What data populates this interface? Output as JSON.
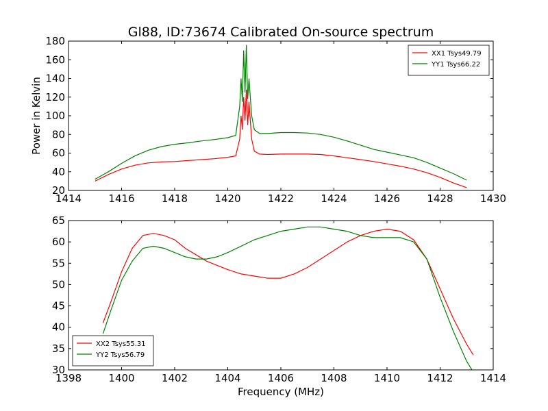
{
  "chart_data": [
    {
      "type": "line",
      "title": "Gl88, ID:73674 Calibrated On-source spectrum",
      "xlabel": "",
      "ylabel": "Power in Kelvin",
      "xlim": [
        1414,
        1430
      ],
      "ylim": [
        20,
        180
      ],
      "xticks": [
        1414,
        1416,
        1418,
        1420,
        1422,
        1424,
        1426,
        1428,
        1430
      ],
      "yticks": [
        20,
        40,
        60,
        80,
        100,
        120,
        140,
        160,
        180
      ],
      "grid": false,
      "legend": "top-right",
      "series": [
        {
          "name": "XX1 Tsys49.79",
          "color": "#ff0000",
          "x": [
            1415,
            1415.5,
            1416,
            1416.5,
            1417,
            1417.5,
            1418,
            1418.5,
            1419,
            1419.5,
            1420,
            1420.3,
            1420.45,
            1420.5,
            1420.55,
            1420.6,
            1420.65,
            1420.7,
            1420.75,
            1420.8,
            1420.85,
            1420.9,
            1421,
            1421.2,
            1421.5,
            1422,
            1422.5,
            1423,
            1423.5,
            1424,
            1424.5,
            1425,
            1425.5,
            1426,
            1426.5,
            1427,
            1427.5,
            1428,
            1428.5,
            1429
          ],
          "values": [
            30,
            37,
            43,
            47,
            49.5,
            50.5,
            51,
            52,
            53,
            54,
            55.5,
            57,
            75,
            100,
            85,
            120,
            95,
            128,
            90,
            115,
            95,
            75,
            62,
            59,
            58.5,
            59,
            59,
            59,
            58.5,
            57,
            55,
            53,
            51,
            48.5,
            46,
            43,
            39,
            34,
            28,
            23
          ]
        },
        {
          "name": "YY1 Tsys66.22",
          "color": "#008000",
          "x": [
            1415,
            1415.5,
            1416,
            1416.5,
            1417,
            1417.5,
            1418,
            1418.5,
            1419,
            1419.5,
            1420,
            1420.3,
            1420.45,
            1420.5,
            1420.55,
            1420.6,
            1420.65,
            1420.7,
            1420.75,
            1420.8,
            1420.85,
            1420.9,
            1421,
            1421.2,
            1421.5,
            1422,
            1422.5,
            1423,
            1423.5,
            1424,
            1424.5,
            1425,
            1425.5,
            1426,
            1426.5,
            1427,
            1427.5,
            1428,
            1428.5,
            1429
          ],
          "values": [
            32,
            40,
            49,
            57,
            63,
            67,
            69.5,
            71,
            73,
            74.5,
            76.5,
            79,
            110,
            140,
            115,
            170,
            125,
            176,
            118,
            140,
            120,
            100,
            85,
            81,
            81,
            82,
            82,
            81.5,
            80,
            77,
            73,
            68.5,
            64,
            61,
            58,
            55,
            50,
            44,
            38,
            31
          ]
        }
      ]
    },
    {
      "type": "line",
      "title": "",
      "xlabel": "Frequency (MHz)",
      "ylabel": "",
      "xlim": [
        1398,
        1414
      ],
      "ylim": [
        30,
        65
      ],
      "xticks": [
        1398,
        1400,
        1402,
        1404,
        1406,
        1408,
        1410,
        1412,
        1414
      ],
      "yticks": [
        30,
        35,
        40,
        45,
        50,
        55,
        60,
        65
      ],
      "grid": false,
      "legend": "bottom-left",
      "series": [
        {
          "name": "XX2 Tsys55.31",
          "color": "#ff0000",
          "x": [
            1399.3,
            1399.6,
            1400,
            1400.4,
            1400.8,
            1401.2,
            1401.6,
            1402,
            1402.4,
            1402.8,
            1403.2,
            1403.6,
            1404,
            1404.5,
            1405,
            1405.5,
            1406,
            1406.5,
            1407,
            1407.5,
            1408,
            1408.5,
            1409,
            1409.5,
            1410,
            1410.5,
            1411,
            1411.5,
            1412,
            1412.5,
            1413,
            1413.25
          ],
          "values": [
            41,
            46,
            53,
            58.5,
            61.5,
            62,
            61.5,
            60.5,
            58.5,
            57,
            55.5,
            54.5,
            53.5,
            52.5,
            52,
            51.5,
            51.5,
            52.5,
            54,
            56,
            58,
            60,
            61.5,
            62.5,
            63,
            62.5,
            60.5,
            56,
            49,
            42,
            36,
            33.5
          ]
        },
        {
          "name": "YY2 Tsys56.79",
          "color": "#008000",
          "x": [
            1399.3,
            1399.6,
            1400,
            1400.4,
            1400.8,
            1401.2,
            1401.6,
            1402,
            1402.4,
            1402.8,
            1403.2,
            1403.6,
            1404,
            1404.5,
            1405,
            1405.5,
            1406,
            1406.5,
            1407,
            1407.5,
            1408,
            1408.5,
            1409,
            1409.5,
            1410,
            1410.5,
            1411,
            1411.5,
            1412,
            1412.5,
            1413,
            1413.25
          ],
          "values": [
            38.5,
            44,
            51,
            55.5,
            58.5,
            59,
            58.5,
            57.5,
            56.5,
            56,
            56,
            56.5,
            57.5,
            59,
            60.5,
            61.5,
            62.5,
            63,
            63.5,
            63.5,
            63,
            62.5,
            61.5,
            61,
            61,
            61,
            60,
            56,
            47,
            39,
            32,
            29.5
          ]
        }
      ]
    }
  ]
}
